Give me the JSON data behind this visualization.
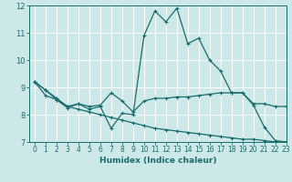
{
  "xlabel": "Humidex (Indice chaleur)",
  "ylabel": "",
  "xlim": [
    -0.5,
    23
  ],
  "ylim": [
    7,
    12
  ],
  "yticks": [
    7,
    8,
    9,
    10,
    11,
    12
  ],
  "xticks": [
    0,
    1,
    2,
    3,
    4,
    5,
    6,
    7,
    8,
    9,
    10,
    11,
    12,
    13,
    14,
    15,
    16,
    17,
    18,
    19,
    20,
    21,
    22,
    23
  ],
  "bg_color": "#cde8e8",
  "grid_color": "#b0d8d8",
  "line_color": "#1a6b6b",
  "lines": [
    {
      "x": [
        0,
        1,
        2,
        3,
        4,
        5,
        6,
        7,
        8,
        9,
        10,
        11,
        12,
        13,
        14,
        15,
        16,
        17,
        18,
        19,
        20,
        21,
        22,
        23
      ],
      "y": [
        9.2,
        8.9,
        8.6,
        8.3,
        8.4,
        8.2,
        8.3,
        7.5,
        8.05,
        8.0,
        10.9,
        11.8,
        11.4,
        11.9,
        10.6,
        10.8,
        10.0,
        9.6,
        8.8,
        8.8,
        8.35,
        7.55,
        7.05,
        7.0
      ]
    },
    {
      "x": [
        0,
        1,
        2,
        3,
        4,
        5,
        6,
        7,
        8,
        9,
        10,
        11,
        12,
        13,
        14,
        15,
        16,
        17,
        18,
        19,
        20,
        21,
        22,
        23
      ],
      "y": [
        9.2,
        8.9,
        8.55,
        8.25,
        8.4,
        8.3,
        8.35,
        8.8,
        8.5,
        8.1,
        8.5,
        8.6,
        8.6,
        8.65,
        8.65,
        8.7,
        8.75,
        8.8,
        8.8,
        8.8,
        8.4,
        8.4,
        8.3,
        8.3
      ]
    },
    {
      "x": [
        0,
        1,
        2,
        3,
        4,
        5,
        6,
        7,
        8,
        9,
        10,
        11,
        12,
        13,
        14,
        15,
        16,
        17,
        18,
        19,
        20,
        21,
        22,
        23
      ],
      "y": [
        9.2,
        8.7,
        8.55,
        8.3,
        8.2,
        8.1,
        8.0,
        7.9,
        7.8,
        7.7,
        7.6,
        7.5,
        7.45,
        7.4,
        7.35,
        7.3,
        7.25,
        7.2,
        7.15,
        7.1,
        7.1,
        7.05,
        7.0,
        7.0
      ]
    }
  ]
}
